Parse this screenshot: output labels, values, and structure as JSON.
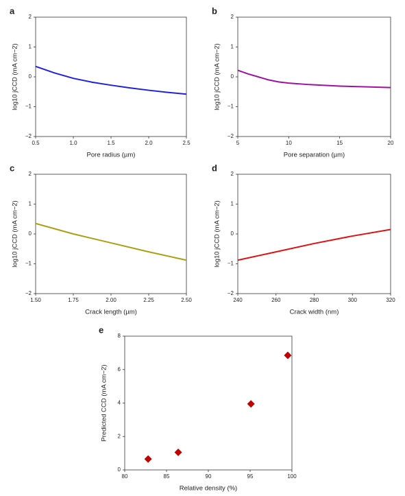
{
  "chart_data": [
    {
      "type": "line",
      "label": "a",
      "xlabel": "Pore radius (µm)",
      "ylabel": "log10 jCCD (mA cm−2)",
      "color": "#1f1fe0",
      "x": [
        0.5,
        0.75,
        1.0,
        1.25,
        1.5,
        1.75,
        2.0,
        2.25,
        2.5
      ],
      "values": [
        0.35,
        0.13,
        -0.05,
        -0.18,
        -0.28,
        -0.37,
        -0.45,
        -0.52,
        -0.58
      ],
      "xlim": [
        0.5,
        2.5
      ],
      "ylim": [
        -2,
        2
      ],
      "xticks": [
        {
          "value": 0.5,
          "label": "0.5"
        },
        {
          "value": 1.0,
          "label": "1.0"
        },
        {
          "value": 1.5,
          "label": "1.5"
        },
        {
          "value": 2.0,
          "label": "2.0"
        },
        {
          "value": 2.5,
          "label": "2.5"
        }
      ],
      "yticks": [
        {
          "value": -2,
          "label": "−2"
        },
        {
          "value": -1,
          "label": "−1"
        },
        0,
        1,
        2
      ]
    },
    {
      "type": "line",
      "label": "b",
      "xlabel": "Pore separation (µm)",
      "ylabel": "log10 jCCD (mA cm−2)",
      "color": "#a010a0",
      "x": [
        5,
        6,
        7,
        8,
        9,
        10,
        12,
        15,
        18,
        20
      ],
      "values": [
        0.22,
        0.1,
        0.0,
        -0.1,
        -0.17,
        -0.21,
        -0.26,
        -0.31,
        -0.34,
        -0.36
      ],
      "xlim": [
        5,
        20
      ],
      "ylim": [
        -2,
        2
      ],
      "xticks": [
        5,
        10,
        15,
        20
      ],
      "yticks": [
        {
          "value": -2,
          "label": "−2"
        },
        {
          "value": -1,
          "label": "−1"
        },
        0,
        1,
        2
      ]
    },
    {
      "type": "line",
      "label": "c",
      "xlabel": "Crack length (µm)",
      "ylabel": "log10 jCCD (mA cm−2)",
      "color": "#a8a010",
      "x": [
        1.5,
        1.75,
        2.0,
        2.25,
        2.5
      ],
      "values": [
        0.35,
        0.0,
        -0.3,
        -0.6,
        -0.88
      ],
      "xlim": [
        1.5,
        2.5
      ],
      "ylim": [
        -2,
        2
      ],
      "xticks": [
        {
          "value": 1.5,
          "label": "1.50"
        },
        {
          "value": 1.75,
          "label": "1.75"
        },
        {
          "value": 2.0,
          "label": "2.00"
        },
        {
          "value": 2.25,
          "label": "2.25"
        },
        {
          "value": 2.5,
          "label": "2.50"
        }
      ],
      "yticks": [
        {
          "value": -2,
          "label": "−2"
        },
        {
          "value": -1,
          "label": "−1"
        },
        0,
        1,
        2
      ]
    },
    {
      "type": "line",
      "label": "d",
      "xlabel": "Crack width (nm)",
      "ylabel": "log10 jCCD (mA cm−2)",
      "color": "#e01010",
      "x": [
        240,
        260,
        280,
        300,
        320
      ],
      "values": [
        -0.88,
        -0.6,
        -0.32,
        -0.07,
        0.15
      ],
      "xlim": [
        240,
        320
      ],
      "ylim": [
        -2,
        2
      ],
      "xticks": [
        240,
        260,
        280,
        300,
        320
      ],
      "yticks": [
        {
          "value": -2,
          "label": "−2"
        },
        {
          "value": -1,
          "label": "−1"
        },
        0,
        1,
        2
      ]
    },
    {
      "type": "scatter",
      "label": "e",
      "xlabel": "Relative density (%)",
      "ylabel": "Predicted CCD (mA cm−2)",
      "color": "#c00000",
      "x": [
        82.8,
        86.4,
        95.1,
        99.5
      ],
      "values": [
        0.65,
        1.05,
        3.95,
        6.85
      ],
      "xlim": [
        80,
        100
      ],
      "ylim": [
        0,
        8
      ],
      "xticks": [
        80,
        85,
        90,
        95,
        100
      ],
      "yticks": [
        0,
        2,
        4,
        6,
        8
      ]
    }
  ]
}
